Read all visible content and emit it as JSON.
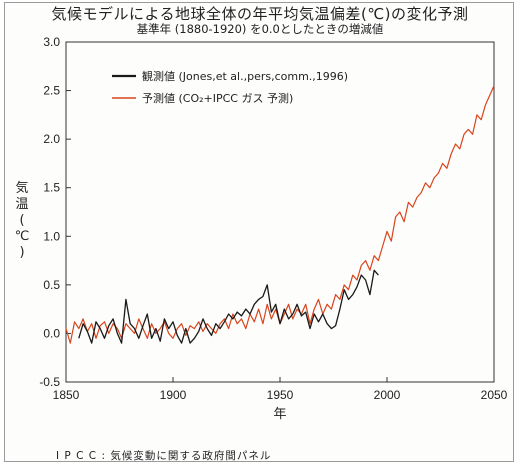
{
  "chart_data": {
    "type": "line",
    "title": "気候モデルによる地球全体の年平均気温偏差(℃)の変化予測",
    "subtitle": "基準年 (1880-1920) を0.0としたときの増減値",
    "xlabel": "年",
    "ylabel": "気温(℃)",
    "xlim": [
      1850,
      2050
    ],
    "ylim": [
      -0.5,
      3.0
    ],
    "xticks": [
      "1850",
      "1900",
      "1950",
      "2000",
      "2050"
    ],
    "yticks": [
      "-0.5",
      "0.0",
      "0.5",
      "1.0",
      "1.5",
      "2.0",
      "2.5",
      "3.0"
    ],
    "grid": false,
    "legend_position": "top-left",
    "series": [
      {
        "name": "観測値 (Jones,et al.,pers,comm.,1996)",
        "color": "#1a1a1a",
        "x": [
          1856,
          1858,
          1860,
          1862,
          1864,
          1866,
          1868,
          1870,
          1872,
          1874,
          1876,
          1878,
          1880,
          1882,
          1884,
          1886,
          1888,
          1890,
          1892,
          1894,
          1896,
          1898,
          1900,
          1902,
          1904,
          1906,
          1908,
          1910,
          1912,
          1914,
          1916,
          1918,
          1920,
          1922,
          1924,
          1926,
          1928,
          1930,
          1932,
          1934,
          1936,
          1938,
          1940,
          1942,
          1944,
          1946,
          1948,
          1950,
          1952,
          1954,
          1956,
          1958,
          1960,
          1962,
          1964,
          1966,
          1968,
          1970,
          1972,
          1974,
          1976,
          1978,
          1980,
          1982,
          1984,
          1986,
          1988,
          1990,
          1992,
          1994,
          1996
        ],
        "y": [
          -0.05,
          0.1,
          0.02,
          -0.1,
          0.12,
          0.05,
          -0.05,
          0.08,
          0.15,
          0.0,
          -0.1,
          0.35,
          0.1,
          0.05,
          -0.05,
          0.08,
          0.2,
          -0.05,
          0.05,
          -0.08,
          0.15,
          0.05,
          0.12,
          -0.02,
          -0.1,
          0.05,
          -0.1,
          -0.05,
          0.02,
          0.15,
          0.05,
          -0.02,
          0.1,
          0.05,
          0.12,
          0.2,
          0.15,
          0.22,
          0.18,
          0.25,
          0.2,
          0.3,
          0.35,
          0.38,
          0.5,
          0.22,
          0.3,
          0.1,
          0.25,
          0.15,
          0.2,
          0.3,
          0.18,
          0.22,
          0.05,
          0.2,
          0.12,
          0.2,
          0.1,
          0.05,
          0.08,
          0.25,
          0.45,
          0.35,
          0.4,
          0.48,
          0.6,
          0.55,
          0.4,
          0.65,
          0.6
        ]
      },
      {
        "name": "予測値 (CO₂+IPCC ガス 予測)",
        "color": "#d9451c",
        "x": [
          1850,
          1852,
          1854,
          1856,
          1858,
          1860,
          1862,
          1864,
          1866,
          1868,
          1870,
          1872,
          1874,
          1876,
          1878,
          1880,
          1882,
          1884,
          1886,
          1888,
          1890,
          1892,
          1894,
          1896,
          1898,
          1900,
          1902,
          1904,
          1906,
          1908,
          1910,
          1912,
          1914,
          1916,
          1918,
          1920,
          1922,
          1924,
          1926,
          1928,
          1930,
          1932,
          1934,
          1936,
          1938,
          1940,
          1942,
          1944,
          1946,
          1948,
          1950,
          1952,
          1954,
          1956,
          1958,
          1960,
          1962,
          1964,
          1966,
          1968,
          1970,
          1972,
          1974,
          1976,
          1978,
          1980,
          1982,
          1984,
          1986,
          1988,
          1990,
          1992,
          1994,
          1996,
          1998,
          2000,
          2002,
          2004,
          2006,
          2008,
          2010,
          2012,
          2014,
          2016,
          2018,
          2020,
          2022,
          2024,
          2026,
          2028,
          2030,
          2032,
          2034,
          2036,
          2038,
          2040,
          2042,
          2044,
          2046,
          2048,
          2050
        ],
        "y": [
          0.05,
          -0.1,
          0.12,
          0.05,
          0.15,
          0.02,
          0.1,
          -0.05,
          0.08,
          0.12,
          0.0,
          0.1,
          0.05,
          -0.05,
          0.1,
          0.05,
          0.0,
          0.15,
          0.05,
          -0.05,
          0.1,
          0.0,
          0.05,
          0.12,
          0.0,
          -0.05,
          0.05,
          0.1,
          -0.02,
          0.08,
          0.05,
          0.12,
          0.02,
          0.1,
          0.05,
          0.0,
          0.1,
          0.15,
          0.05,
          0.2,
          0.1,
          0.15,
          0.05,
          0.2,
          0.12,
          0.25,
          0.1,
          0.3,
          0.15,
          0.25,
          0.1,
          0.2,
          0.3,
          0.15,
          0.25,
          0.2,
          0.3,
          0.1,
          0.25,
          0.35,
          0.2,
          0.3,
          0.25,
          0.4,
          0.35,
          0.5,
          0.45,
          0.6,
          0.55,
          0.7,
          0.75,
          0.65,
          0.8,
          0.75,
          0.9,
          1.05,
          0.95,
          1.2,
          1.25,
          1.15,
          1.35,
          1.3,
          1.4,
          1.45,
          1.55,
          1.5,
          1.6,
          1.65,
          1.75,
          1.7,
          1.85,
          1.95,
          1.9,
          2.05,
          2.1,
          2.05,
          2.25,
          2.2,
          2.35,
          2.45,
          2.55
        ]
      }
    ]
  },
  "caption": "I P C C : 気候変動に関する政府間パネル"
}
